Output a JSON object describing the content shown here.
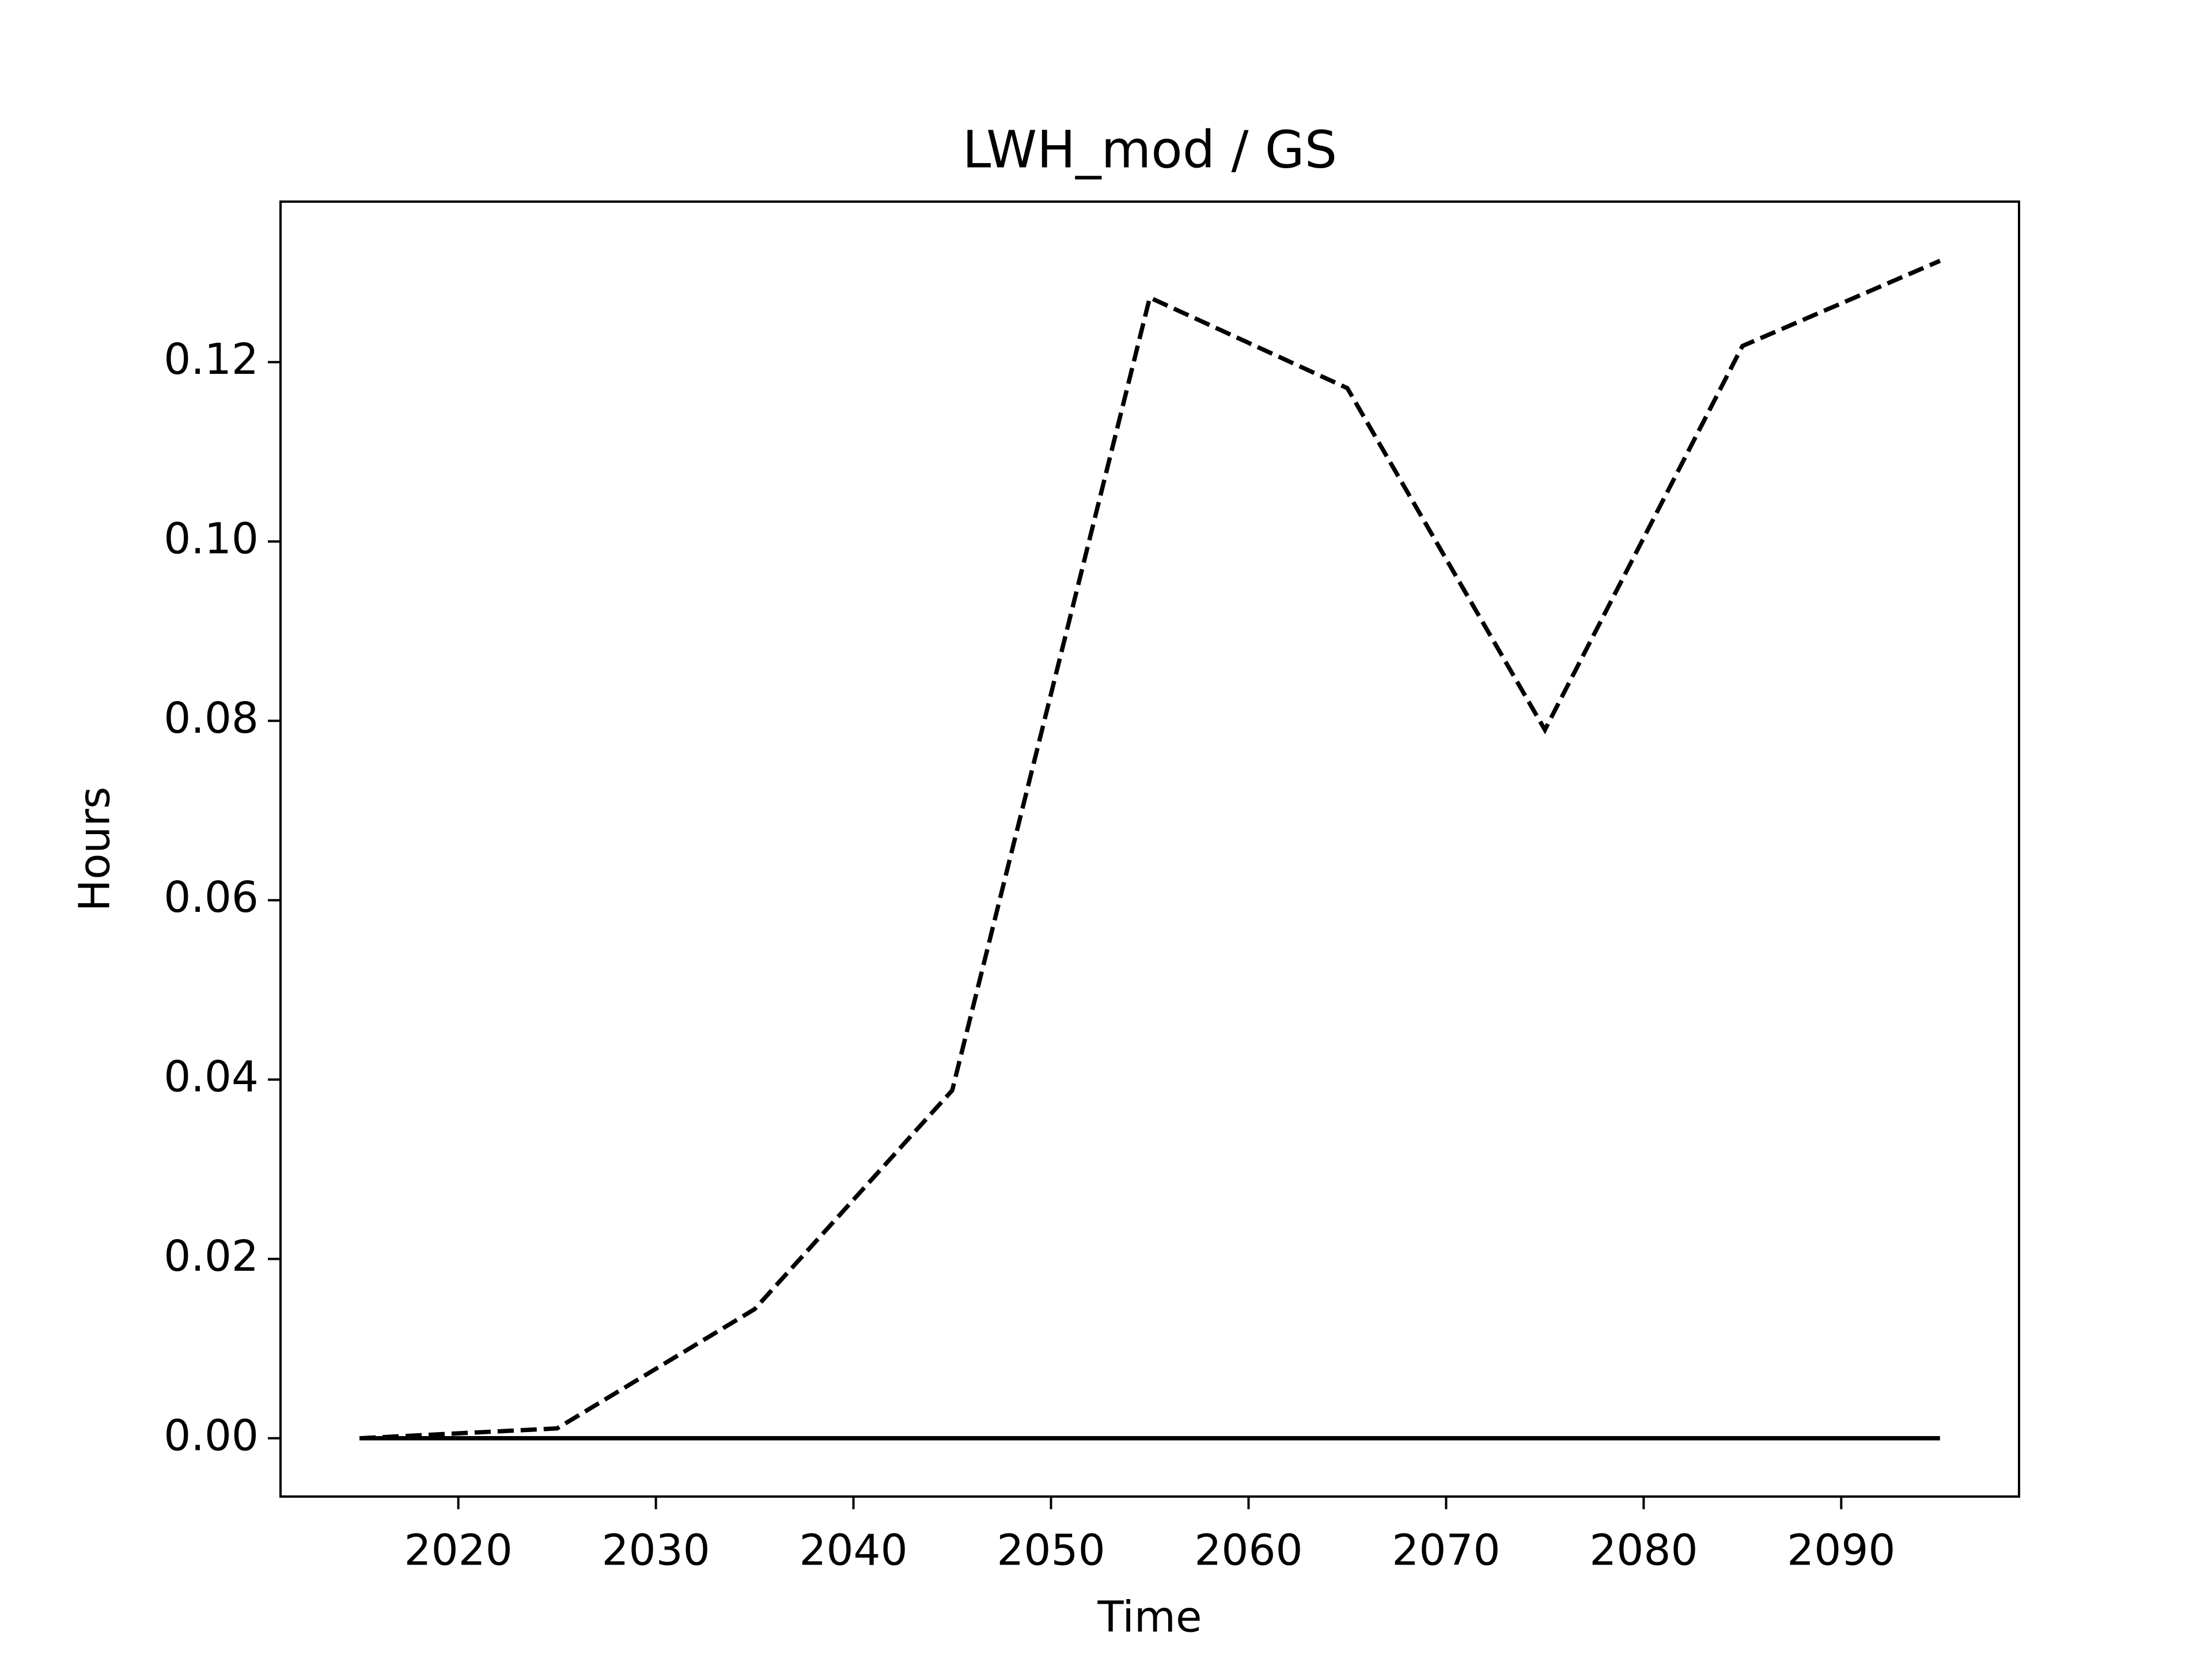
{
  "chart_data": {
    "type": "line",
    "title": "LWH_mod / GS",
    "xlabel": "Time",
    "ylabel": "Hours",
    "x": [
      2015,
      2025,
      2035,
      2045,
      2055,
      2065,
      2075,
      2085,
      2095
    ],
    "series": [
      {
        "color": "#000000",
        "linestyle": "dashed",
        "values": [
          0,
          0.0011,
          0.0144,
          0.0388,
          0.1272,
          0.1171,
          0.079,
          0.1218,
          0.1313
        ]
      },
      {
        "color": "#000000",
        "linestyle": "solid",
        "values": [
          0,
          0,
          0,
          0,
          0,
          0,
          0,
          0,
          0
        ]
      }
    ],
    "xlim": [
      2011,
      2099
    ],
    "ylim": [
      -0.0065,
      0.1379
    ],
    "xticks": [
      2020,
      2030,
      2040,
      2050,
      2060,
      2070,
      2080,
      2090
    ],
    "yticks": [
      {
        "value": 0,
        "label": "0.00"
      },
      {
        "value": 0.02,
        "label": "0.02"
      },
      {
        "value": 0.04,
        "label": "0.04"
      },
      {
        "value": 0.06,
        "label": "0.06"
      },
      {
        "value": 0.08,
        "label": "0.08"
      },
      {
        "value": 0.1,
        "label": "0.10"
      },
      {
        "value": 0.12,
        "label": "0.12"
      }
    ],
    "grid": false
  }
}
